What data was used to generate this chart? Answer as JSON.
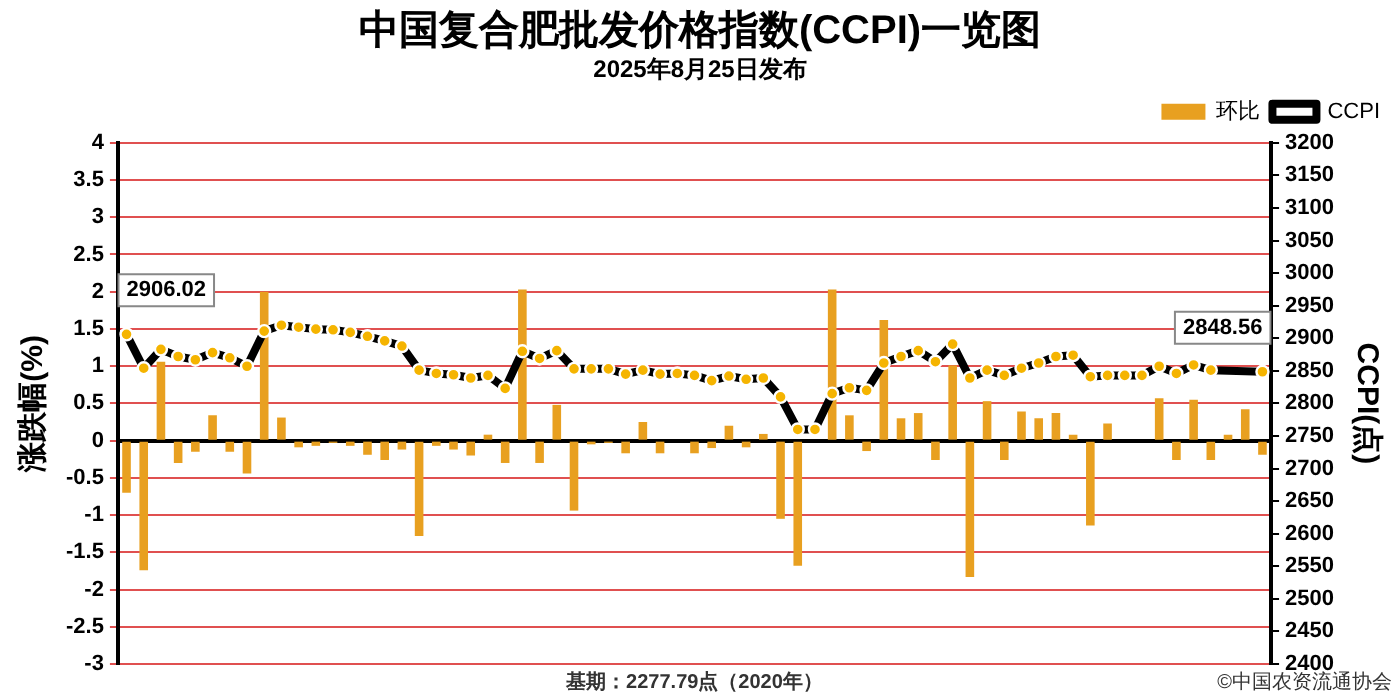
{
  "chart_data": {
    "type": "bar",
    "title": "中国复合肥批发价格指数(CCPI)一览图",
    "subtitle": "2025年8月25日发布",
    "ylabel": "涨跌幅(%)",
    "y2label": "CCPI(点)",
    "annotations": [
      "基期：2277.79点（2020年）",
      "©中国农资流通协会"
    ],
    "categories": [
      null,
      null,
      null,
      null,
      null,
      null,
      null,
      null,
      null,
      null,
      null,
      null,
      null,
      null,
      null,
      null,
      null,
      null,
      null,
      null,
      null,
      null,
      null,
      null,
      null,
      null,
      null,
      null,
      null,
      null,
      null,
      null,
      null,
      null,
      null,
      null,
      null,
      null,
      null,
      null,
      null,
      null,
      null,
      null,
      null,
      null,
      null,
      null,
      null,
      null,
      null,
      null,
      null,
      null,
      null,
      null,
      null,
      null,
      null,
      null,
      null,
      null,
      null,
      null,
      null,
      null,
      null
    ],
    "series": [
      {
        "name": "环比",
        "color": "#e8a020",
        "values": [
          -0.7,
          -1.74,
          1.06,
          -0.3,
          -0.15,
          0.34,
          -0.15,
          -0.44,
          2.0,
          0.31,
          -0.09,
          -0.07,
          -0.03,
          -0.07,
          -0.19,
          -0.26,
          -0.12,
          -1.28,
          -0.07,
          -0.12,
          -0.2,
          0.08,
          -0.3,
          2.03,
          -0.3,
          0.48,
          -0.94,
          -0.05,
          -0.03,
          -0.17,
          0.25,
          -0.17,
          null,
          -0.17,
          -0.1,
          0.2,
          -0.09,
          0.09,
          -1.05,
          -1.68,
          0,
          2.03,
          0.34,
          -0.14,
          1.62,
          0.3,
          0.37,
          -0.26,
          1.01,
          -1.83,
          0.53,
          -0.26,
          0.39,
          0.3,
          0.37,
          0.08,
          -1.14,
          0.23,
          0,
          0,
          0.57,
          -0.26,
          0.55,
          -0.26,
          0.08,
          0.42,
          -0.19
        ]
      },
      {
        "name": "CCPI",
        "type": "line",
        "axis": "y2",
        "color": "#000000",
        "values": [
          2906.02,
          2854,
          2883,
          2872,
          2867,
          2878,
          2870,
          2857,
          2911,
          2920,
          2917,
          2914,
          2913,
          2909,
          2903,
          2896,
          2888,
          2851,
          2846,
          2844,
          2839,
          2843,
          2823,
          2880,
          2869,
          2881,
          2853,
          2853,
          2853,
          2845,
          2851,
          2845,
          2846,
          2843,
          2835,
          2842,
          2837,
          2839,
          2810,
          2760,
          2760,
          2815,
          2824,
          2820,
          2862,
          2872,
          2881,
          2864,
          2891,
          2839,
          2851,
          2843,
          2854,
          2862,
          2872,
          2874,
          2841,
          2843,
          2843,
          2843,
          2857,
          2846,
          2859,
          2851,
          null,
          null,
          2848.56
        ],
        "value_labels": [
          "2906.02",
          null,
          null,
          null,
          null,
          null,
          null,
          null,
          null,
          null,
          null,
          null,
          null,
          null,
          null,
          null,
          null,
          null,
          null,
          null,
          null,
          null,
          null,
          null,
          null,
          null,
          null,
          null,
          null,
          null,
          null,
          null,
          null,
          null,
          null,
          null,
          null,
          null,
          null,
          null,
          null,
          null,
          null,
          null,
          null,
          null,
          null,
          null,
          null,
          null,
          null,
          null,
          null,
          null,
          null,
          null,
          null,
          null,
          null,
          null,
          null,
          null,
          null,
          null,
          null,
          null,
          "2848.56"
        ]
      }
    ],
    "ylim": [
      -3,
      4
    ],
    "yticks": [
      -3,
      -2.5,
      -2,
      -1.5,
      -1,
      -0.5,
      0,
      0.5,
      1,
      1.5,
      2,
      2.5,
      3,
      3.5,
      4
    ],
    "y2lim": [
      2400,
      3200
    ],
    "y2ticks": [
      2400,
      2450,
      2500,
      2550,
      2600,
      2650,
      2700,
      2750,
      2800,
      2850,
      2900,
      2950,
      3000,
      3050,
      3100,
      3150,
      3200
    ],
    "grid": "y",
    "legend": "top right",
    "marker": "circle"
  }
}
